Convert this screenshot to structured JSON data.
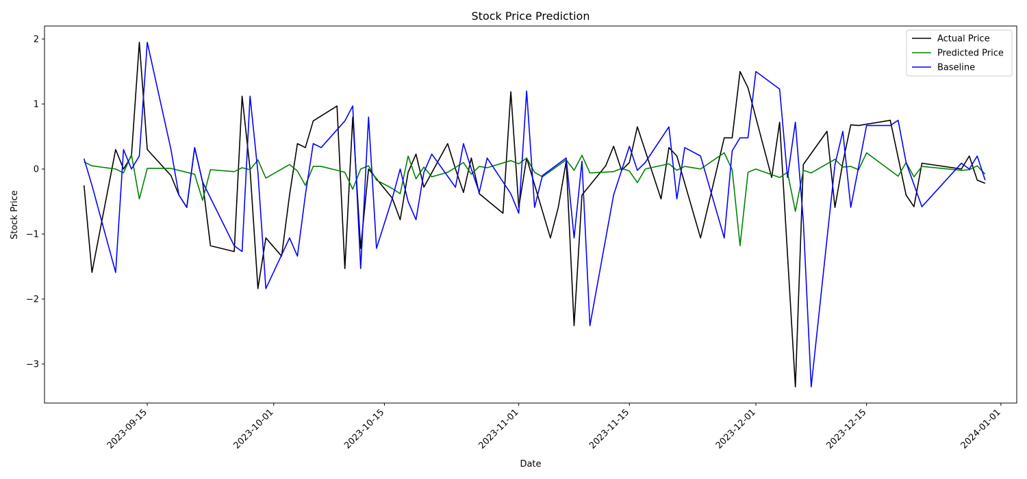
{
  "chart_data": {
    "type": "line",
    "title": "Stock Price Prediction",
    "xlabel": "Date",
    "ylabel": "Stock Price",
    "xlim": [
      "2023-09-02",
      "2024-01-03"
    ],
    "ylim": [
      -3.6,
      2.2
    ],
    "x_ticks": [
      "2023-09-15",
      "2023-10-01",
      "2023-10-15",
      "2023-11-01",
      "2023-11-15",
      "2023-12-01",
      "2023-12-15",
      "2024-01-01"
    ],
    "y_ticks": [
      -3,
      -2,
      -1,
      0,
      1,
      2
    ],
    "y_tick_labels": [
      "−3",
      "−2",
      "−1",
      "0",
      "1",
      "2"
    ],
    "grid": false,
    "legend": "top-right",
    "series": [
      {
        "name": "Actual Price",
        "color": "#000000",
        "points": [
          [
            "2023-09-07",
            -0.25
          ],
          [
            "2023-09-08",
            -1.59
          ],
          [
            "2023-09-11",
            0.3
          ],
          [
            "2023-09-12",
            0.0
          ],
          [
            "2023-09-13",
            0.2
          ],
          [
            "2023-09-14",
            1.95
          ],
          [
            "2023-09-15",
            0.3
          ],
          [
            "2023-09-18",
            -0.1
          ],
          [
            "2023-09-19",
            -0.4
          ],
          [
            "2023-09-20",
            -0.59
          ],
          [
            "2023-09-21",
            0.33
          ],
          [
            "2023-09-22",
            -0.2
          ],
          [
            "2023-09-23",
            -1.18
          ],
          [
            "2023-09-26",
            -1.27
          ],
          [
            "2023-09-27",
            1.12
          ],
          [
            "2023-09-28",
            0.0
          ],
          [
            "2023-09-29",
            -1.84
          ],
          [
            "2023-09-30",
            -1.06
          ],
          [
            "2023-10-02",
            -1.34
          ],
          [
            "2023-10-03",
            -0.4
          ],
          [
            "2023-10-04",
            0.39
          ],
          [
            "2023-10-05",
            0.33
          ],
          [
            "2023-10-06",
            0.74
          ],
          [
            "2023-10-09",
            0.97
          ],
          [
            "2023-10-10",
            -1.53
          ],
          [
            "2023-10-11",
            0.8
          ],
          [
            "2023-10-12",
            -1.22
          ],
          [
            "2023-10-13",
            0.0
          ],
          [
            "2023-10-16",
            -0.45
          ],
          [
            "2023-10-17",
            -0.78
          ],
          [
            "2023-10-18",
            -0.05
          ],
          [
            "2023-10-19",
            0.23
          ],
          [
            "2023-10-20",
            -0.28
          ],
          [
            "2023-10-23",
            0.39
          ],
          [
            "2023-10-24",
            0.0
          ],
          [
            "2023-10-25",
            -0.36
          ],
          [
            "2023-10-26",
            0.17
          ],
          [
            "2023-10-27",
            -0.38
          ],
          [
            "2023-10-30",
            -0.68
          ],
          [
            "2023-10-31",
            1.19
          ],
          [
            "2023-11-01",
            -0.59
          ],
          [
            "2023-11-02",
            0.17
          ],
          [
            "2023-11-05",
            -1.06
          ],
          [
            "2023-11-06",
            -0.59
          ],
          [
            "2023-11-07",
            0.12
          ],
          [
            "2023-11-08",
            -2.41
          ],
          [
            "2023-11-09",
            -0.4
          ],
          [
            "2023-11-12",
            0.05
          ],
          [
            "2023-11-13",
            0.35
          ],
          [
            "2023-11-14",
            -0.02
          ],
          [
            "2023-11-15",
            0.1
          ],
          [
            "2023-11-16",
            0.65
          ],
          [
            "2023-11-19",
            -0.46
          ],
          [
            "2023-11-20",
            0.33
          ],
          [
            "2023-11-21",
            0.2
          ],
          [
            "2023-11-24",
            -1.06
          ],
          [
            "2023-11-27",
            0.48
          ],
          [
            "2023-11-28",
            0.48
          ],
          [
            "2023-11-29",
            1.5
          ],
          [
            "2023-11-30",
            1.25
          ],
          [
            "2023-12-03",
            -0.13
          ],
          [
            "2023-12-04",
            0.72
          ],
          [
            "2023-12-06",
            -3.35
          ],
          [
            "2023-12-07",
            0.07
          ],
          [
            "2023-12-10",
            0.58
          ],
          [
            "2023-12-11",
            -0.59
          ],
          [
            "2023-12-12",
            0.1
          ],
          [
            "2023-12-13",
            0.68
          ],
          [
            "2023-12-14",
            0.67
          ],
          [
            "2023-12-18",
            0.75
          ],
          [
            "2023-12-20",
            -0.4
          ],
          [
            "2023-12-21",
            -0.58
          ],
          [
            "2023-12-22",
            0.09
          ],
          [
            "2023-12-27",
            0.0
          ],
          [
            "2023-12-28",
            0.2
          ],
          [
            "2023-12-29",
            -0.17
          ],
          [
            "2023-12-30",
            -0.22
          ]
        ]
      },
      {
        "name": "Predicted Price",
        "color": "#008000",
        "points": [
          [
            "2023-09-07",
            0.11
          ],
          [
            "2023-09-08",
            0.05
          ],
          [
            "2023-09-11",
            0.0
          ],
          [
            "2023-09-12",
            -0.06
          ],
          [
            "2023-09-13",
            0.22
          ],
          [
            "2023-09-14",
            -0.46
          ],
          [
            "2023-09-15",
            0.01
          ],
          [
            "2023-09-18",
            0.01
          ],
          [
            "2023-09-20",
            -0.05
          ],
          [
            "2023-09-21",
            -0.08
          ],
          [
            "2023-09-22",
            -0.48
          ],
          [
            "2023-09-23",
            -0.01
          ],
          [
            "2023-09-26",
            -0.04
          ],
          [
            "2023-09-27",
            0.02
          ],
          [
            "2023-09-28",
            -0.01
          ],
          [
            "2023-09-29",
            0.14
          ],
          [
            "2023-09-30",
            -0.14
          ],
          [
            "2023-10-03",
            0.07
          ],
          [
            "2023-10-04",
            -0.03
          ],
          [
            "2023-10-05",
            -0.25
          ],
          [
            "2023-10-06",
            0.04
          ],
          [
            "2023-10-07",
            0.04
          ],
          [
            "2023-10-09",
            -0.02
          ],
          [
            "2023-10-10",
            -0.05
          ],
          [
            "2023-10-11",
            -0.31
          ],
          [
            "2023-10-12",
            0.0
          ],
          [
            "2023-10-13",
            0.05
          ],
          [
            "2023-10-14",
            -0.17
          ],
          [
            "2023-10-16",
            -0.3
          ],
          [
            "2023-10-17",
            -0.38
          ],
          [
            "2023-10-18",
            0.2
          ],
          [
            "2023-10-19",
            -0.15
          ],
          [
            "2023-10-20",
            0.03
          ],
          [
            "2023-10-21",
            -0.12
          ],
          [
            "2023-10-23",
            -0.05
          ],
          [
            "2023-10-25",
            0.1
          ],
          [
            "2023-10-26",
            -0.08
          ],
          [
            "2023-10-27",
            0.04
          ],
          [
            "2023-10-28",
            0.02
          ],
          [
            "2023-10-31",
            0.13
          ],
          [
            "2023-11-01",
            0.08
          ],
          [
            "2023-11-02",
            0.17
          ],
          [
            "2023-11-03",
            -0.05
          ],
          [
            "2023-11-04",
            -0.12
          ],
          [
            "2023-11-07",
            0.14
          ],
          [
            "2023-11-08",
            -0.02
          ],
          [
            "2023-11-09",
            0.21
          ],
          [
            "2023-11-10",
            -0.06
          ],
          [
            "2023-11-13",
            -0.04
          ],
          [
            "2023-11-14",
            0.01
          ],
          [
            "2023-11-15",
            -0.03
          ],
          [
            "2023-11-16",
            -0.21
          ],
          [
            "2023-11-17",
            0.0
          ],
          [
            "2023-11-20",
            0.08
          ],
          [
            "2023-11-21",
            -0.02
          ],
          [
            "2023-11-22",
            0.04
          ],
          [
            "2023-11-24",
            0.0
          ],
          [
            "2023-11-27",
            0.25
          ],
          [
            "2023-11-28",
            -0.01
          ],
          [
            "2023-11-29",
            -1.18
          ],
          [
            "2023-11-30",
            -0.05
          ],
          [
            "2023-12-01",
            0.0
          ],
          [
            "2023-12-04",
            -0.13
          ],
          [
            "2023-12-05",
            -0.05
          ],
          [
            "2023-12-06",
            -0.65
          ],
          [
            "2023-12-07",
            -0.02
          ],
          [
            "2023-12-08",
            -0.06
          ],
          [
            "2023-12-11",
            0.15
          ],
          [
            "2023-12-12",
            0.03
          ],
          [
            "2023-12-13",
            0.04
          ],
          [
            "2023-12-14",
            -0.01
          ],
          [
            "2023-12-15",
            0.25
          ],
          [
            "2023-12-19",
            -0.11
          ],
          [
            "2023-12-20",
            0.1
          ],
          [
            "2023-12-21",
            -0.12
          ],
          [
            "2023-12-22",
            0.04
          ],
          [
            "2023-12-27",
            -0.02
          ],
          [
            "2023-12-28",
            -0.01
          ],
          [
            "2023-12-29",
            0.05
          ],
          [
            "2023-12-30",
            -0.08
          ]
        ]
      },
      {
        "name": "Baseline",
        "color": "#0000ff",
        "points": [
          [
            "2023-09-07",
            0.16
          ],
          [
            "2023-09-08",
            -0.25
          ],
          [
            "2023-09-11",
            -1.59
          ],
          [
            "2023-09-12",
            0.3
          ],
          [
            "2023-09-13",
            0.0
          ],
          [
            "2023-09-14",
            0.2
          ],
          [
            "2023-09-15",
            1.95
          ],
          [
            "2023-09-18",
            0.3
          ],
          [
            "2023-09-19",
            -0.4
          ],
          [
            "2023-09-20",
            -0.59
          ],
          [
            "2023-09-21",
            0.33
          ],
          [
            "2023-09-22",
            -0.2
          ],
          [
            "2023-09-26",
            -1.18
          ],
          [
            "2023-09-27",
            -1.27
          ],
          [
            "2023-09-28",
            1.12
          ],
          [
            "2023-09-29",
            -0.05
          ],
          [
            "2023-09-30",
            -1.84
          ],
          [
            "2023-10-03",
            -1.06
          ],
          [
            "2023-10-04",
            -1.34
          ],
          [
            "2023-10-05",
            -0.4
          ],
          [
            "2023-10-06",
            0.39
          ],
          [
            "2023-10-07",
            0.33
          ],
          [
            "2023-10-10",
            0.74
          ],
          [
            "2023-10-11",
            0.97
          ],
          [
            "2023-10-12",
            -1.53
          ],
          [
            "2023-10-13",
            0.8
          ],
          [
            "2023-10-14",
            -1.22
          ],
          [
            "2023-10-16",
            -0.45
          ],
          [
            "2023-10-17",
            0.0
          ],
          [
            "2023-10-18",
            -0.5
          ],
          [
            "2023-10-19",
            -0.78
          ],
          [
            "2023-10-20",
            -0.05
          ],
          [
            "2023-10-21",
            0.23
          ],
          [
            "2023-10-24",
            -0.28
          ],
          [
            "2023-10-25",
            0.39
          ],
          [
            "2023-10-26",
            0.0
          ],
          [
            "2023-10-27",
            -0.36
          ],
          [
            "2023-10-28",
            0.17
          ],
          [
            "2023-10-31",
            -0.38
          ],
          [
            "2023-11-01",
            -0.68
          ],
          [
            "2023-11-02",
            1.2
          ],
          [
            "2023-11-03",
            -0.59
          ],
          [
            "2023-11-04",
            -0.1
          ],
          [
            "2023-11-07",
            0.17
          ],
          [
            "2023-11-08",
            -1.06
          ],
          [
            "2023-11-09",
            0.12
          ],
          [
            "2023-11-10",
            -2.41
          ],
          [
            "2023-11-13",
            -0.4
          ],
          [
            "2023-11-15",
            0.35
          ],
          [
            "2023-11-16",
            -0.02
          ],
          [
            "2023-11-17",
            0.1
          ],
          [
            "2023-11-20",
            0.65
          ],
          [
            "2023-11-21",
            -0.46
          ],
          [
            "2023-11-22",
            0.33
          ],
          [
            "2023-11-24",
            0.2
          ],
          [
            "2023-11-27",
            -1.06
          ],
          [
            "2023-11-28",
            0.28
          ],
          [
            "2023-11-29",
            0.48
          ],
          [
            "2023-11-30",
            0.48
          ],
          [
            "2023-12-01",
            1.5
          ],
          [
            "2023-12-04",
            1.23
          ],
          [
            "2023-12-05",
            -0.13
          ],
          [
            "2023-12-06",
            0.72
          ],
          [
            "2023-12-07",
            -0.8
          ],
          [
            "2023-12-08",
            -3.35
          ],
          [
            "2023-12-11",
            0.07
          ],
          [
            "2023-12-12",
            0.58
          ],
          [
            "2023-12-13",
            -0.59
          ],
          [
            "2023-12-15",
            0.67
          ],
          [
            "2023-12-18",
            0.67
          ],
          [
            "2023-12-19",
            0.75
          ],
          [
            "2023-12-20",
            0.1
          ],
          [
            "2023-12-22",
            -0.58
          ],
          [
            "2023-12-27",
            0.09
          ],
          [
            "2023-12-28",
            0.0
          ],
          [
            "2023-12-29",
            0.2
          ],
          [
            "2023-12-30",
            -0.17
          ]
        ]
      }
    ]
  }
}
